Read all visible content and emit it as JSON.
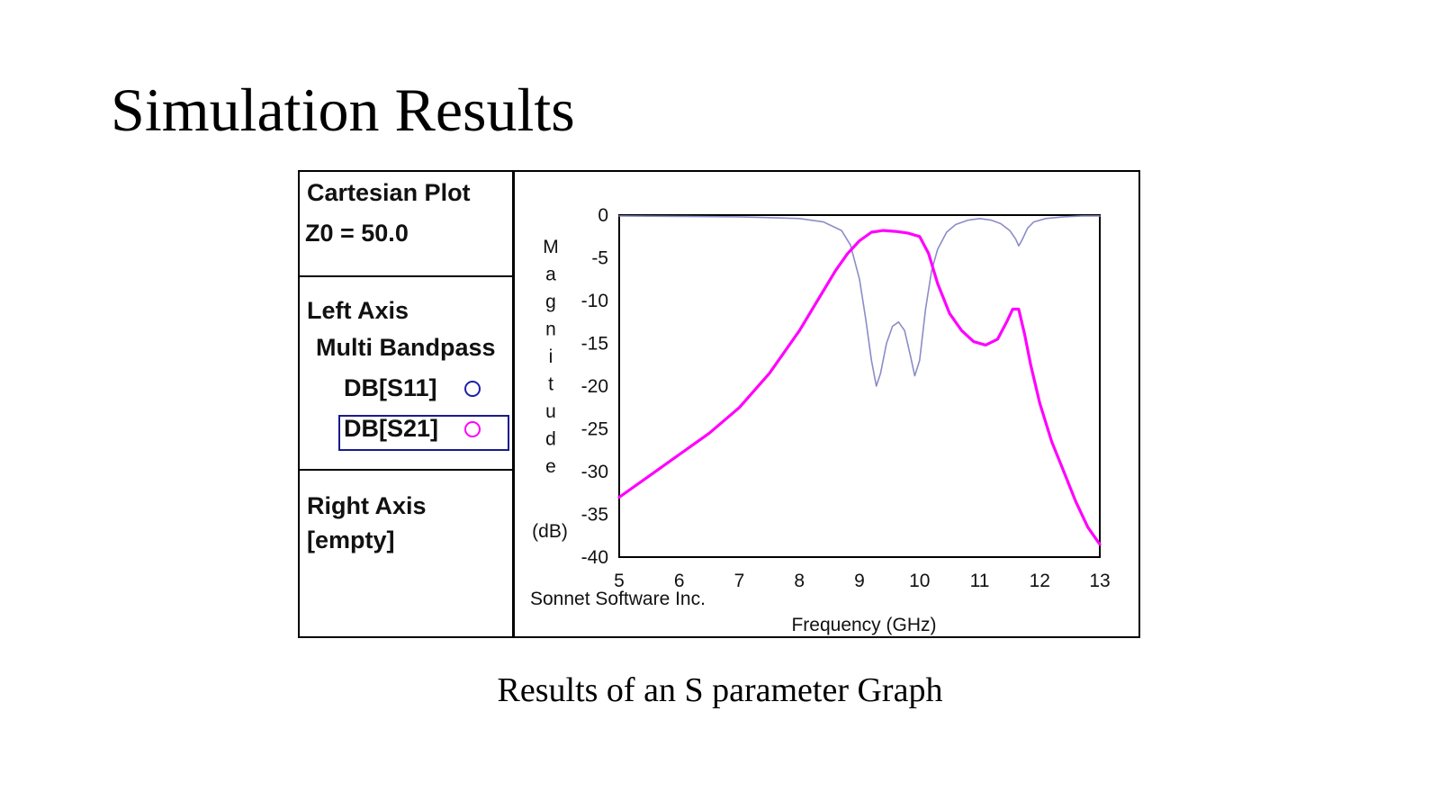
{
  "slide": {
    "title": "Simulation Results",
    "caption": "Results of an S parameter Graph"
  },
  "panel": {
    "plot_type": "Cartesian Plot",
    "z0": "Z0 = 50.0",
    "left_axis_label": "Left Axis",
    "group_name": "Multi Bandpass",
    "traces": [
      {
        "label": "DB[S11]",
        "color": "#1f1fa8"
      },
      {
        "label": "DB[S21]",
        "color": "#ff00ff"
      }
    ],
    "right_axis_label": "Right Axis",
    "right_axis_value": "[empty]"
  },
  "chart_data": {
    "type": "line",
    "xlabel": "Frequency (GHz)",
    "ylabel": "Magnitude",
    "yunit": "(dB)",
    "watermark": "Sonnet Software Inc.",
    "xlim": [
      5,
      13
    ],
    "ylim": [
      -40,
      0
    ],
    "xticks": [
      5,
      6,
      7,
      8,
      9,
      10,
      11,
      12,
      13
    ],
    "yticks": [
      0,
      -5,
      -10,
      -15,
      -20,
      -25,
      -30,
      -35,
      -40
    ],
    "grid": false,
    "series": [
      {
        "name": "DB[S11]",
        "color": "#8c8cc8",
        "x": [
          5,
          6,
          7,
          7.5,
          8,
          8.4,
          8.7,
          8.85,
          9.0,
          9.1,
          9.2,
          9.28,
          9.35,
          9.45,
          9.55,
          9.65,
          9.75,
          9.85,
          9.92,
          10.0,
          10.05,
          10.1,
          10.2,
          10.3,
          10.45,
          10.6,
          10.8,
          11.0,
          11.2,
          11.35,
          11.5,
          11.6,
          11.65,
          11.7,
          11.8,
          11.9,
          12.1,
          12.4,
          12.7,
          13
        ],
        "y": [
          -0.1,
          -0.15,
          -0.2,
          -0.3,
          -0.4,
          -0.8,
          -1.8,
          -3.5,
          -7.5,
          -12,
          -17,
          -20,
          -18.5,
          -15,
          -13,
          -12.5,
          -13.5,
          -16.5,
          -18.8,
          -17,
          -14,
          -11,
          -6.5,
          -4,
          -2,
          -1.1,
          -0.6,
          -0.4,
          -0.6,
          -1,
          -1.8,
          -2.8,
          -3.6,
          -3,
          -1.5,
          -0.8,
          -0.4,
          -0.2,
          -0.1,
          -0.1
        ]
      },
      {
        "name": "DB[S21]",
        "color": "#ff00ff",
        "x": [
          5,
          5.5,
          6,
          6.5,
          7,
          7.5,
          8,
          8.3,
          8.6,
          8.8,
          9.0,
          9.2,
          9.4,
          9.6,
          9.8,
          10.0,
          10.15,
          10.3,
          10.5,
          10.7,
          10.9,
          11.1,
          11.3,
          11.45,
          11.55,
          11.65,
          11.75,
          11.85,
          12.0,
          12.2,
          12.4,
          12.6,
          12.8,
          13
        ],
        "y": [
          -33,
          -30.5,
          -28,
          -25.5,
          -22.5,
          -18.5,
          -13.5,
          -10,
          -6.5,
          -4.5,
          -3,
          -2,
          -1.8,
          -1.9,
          -2.1,
          -2.5,
          -4.5,
          -8,
          -11.5,
          -13.5,
          -14.8,
          -15.2,
          -14.5,
          -12.5,
          -11,
          -11,
          -14,
          -17.5,
          -22,
          -26.5,
          -30,
          -33.5,
          -36.5,
          -38.5
        ]
      }
    ]
  }
}
